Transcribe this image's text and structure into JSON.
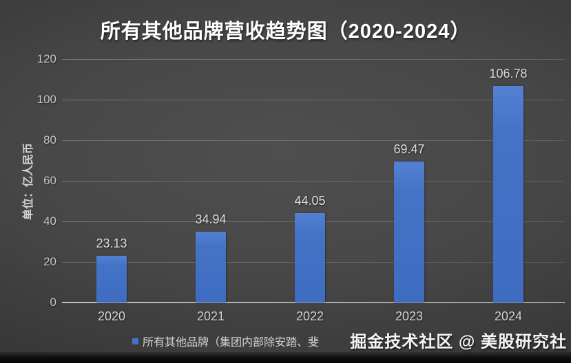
{
  "title": "所有其他品牌营收趋势图（2020-2024）",
  "watermark": "掘金技术社区 @ 美股研究社",
  "legend": {
    "marker_color": "#4472c4",
    "label": "所有其他品牌（集团内部除安踏、斐"
  },
  "colors": {
    "bar": "#4472c4",
    "background": "#3f3f3f",
    "gridline": "#6a6a6a",
    "text": "#d6d6d6",
    "title_text": "#ffffff"
  },
  "chart_data": {
    "type": "bar",
    "title": "所有其他品牌营收趋势图（2020-2024）",
    "categories": [
      "2020",
      "2021",
      "2022",
      "2023",
      "2024"
    ],
    "values": [
      23.13,
      34.94,
      44.05,
      69.47,
      106.78
    ],
    "data_labels": [
      "23.13",
      "34.94",
      "44.05",
      "69.47",
      "106.78"
    ],
    "xlabel": "",
    "ylabel": "单位：亿人民币",
    "ylim": [
      0,
      120
    ],
    "yticks": [
      0,
      20,
      40,
      60,
      80,
      100,
      120
    ],
    "grid": true,
    "legend_position": "bottom"
  }
}
